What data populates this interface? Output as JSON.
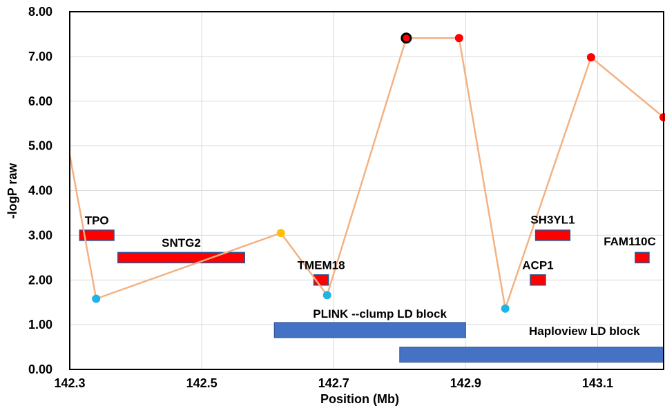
{
  "chart_data": {
    "type": "scatter",
    "title": "",
    "xlabel": "Position (Mb)",
    "ylabel": "-logP raw",
    "xlim": [
      142.3,
      143.2
    ],
    "ylim": [
      0,
      8
    ],
    "x_ticks": [
      142.3,
      142.5,
      142.7,
      142.9,
      143.1
    ],
    "x_tick_labels": [
      "142.3",
      "142.5",
      "142.7",
      "142.9",
      "143.1"
    ],
    "y_ticks": [
      0,
      1,
      2,
      3,
      4,
      5,
      6,
      7,
      8
    ],
    "y_tick_labels": [
      "0.00",
      "1.00",
      "2.00",
      "3.00",
      "4.00",
      "5.00",
      "6.00",
      "7.00",
      "8.00"
    ],
    "grid": true,
    "line_color": "#f4b183",
    "series": [
      {
        "points": [
          {
            "x": 142.3,
            "y": 4.8,
            "color": null,
            "lead": false
          },
          {
            "x": 142.34,
            "y": 1.58,
            "color": "#1eb4e6",
            "lead": false
          },
          {
            "x": 142.62,
            "y": 3.05,
            "color": "#ffc000",
            "lead": false
          },
          {
            "x": 142.69,
            "y": 1.66,
            "color": "#1eb4e6",
            "lead": false
          },
          {
            "x": 142.81,
            "y": 7.41,
            "color": "#ff0000",
            "lead": true
          },
          {
            "x": 142.89,
            "y": 7.41,
            "color": "#ff0000",
            "lead": false
          },
          {
            "x": 142.96,
            "y": 1.36,
            "color": "#1eb4e6",
            "lead": false
          },
          {
            "x": 143.09,
            "y": 6.98,
            "color": "#ff0000",
            "lead": false
          },
          {
            "x": 143.2,
            "y": 5.64,
            "color": "#ff0000",
            "lead": false
          }
        ]
      }
    ],
    "genes": [
      {
        "name": "TPO",
        "start": 142.315,
        "end": 142.367,
        "y": 3.0
      },
      {
        "name": "SNTG2",
        "start": 142.373,
        "end": 142.565,
        "y": 2.5
      },
      {
        "name": "TMEM18",
        "start": 142.67,
        "end": 142.692,
        "y": 2.0
      },
      {
        "name": "ACP1",
        "start": 142.998,
        "end": 143.021,
        "y": 2.0
      },
      {
        "name": "SH3YL1",
        "start": 143.006,
        "end": 143.058,
        "y": 3.0
      },
      {
        "name": "FAM110C",
        "start": 143.157,
        "end": 143.178,
        "y": 2.5
      }
    ],
    "gene_color": "#ff0000",
    "ld_blocks": [
      {
        "name": "PLINK --clump LD block",
        "start": 142.61,
        "end": 142.9,
        "y": 0.88
      },
      {
        "name": "Haploview LD block",
        "start": 142.8,
        "end": 143.2,
        "y": 0.33
      }
    ],
    "ld_block_color": "#4472c4"
  }
}
